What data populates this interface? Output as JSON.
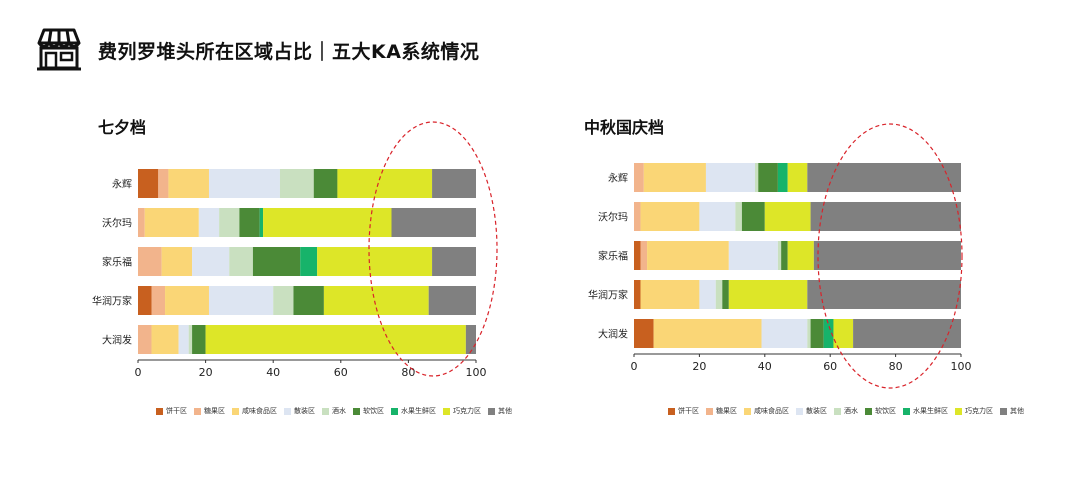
{
  "header": {
    "title": "费列罗堆头所在区域占比｜五大KA系统情况",
    "icon": "store-icon"
  },
  "chart_data": [
    {
      "type": "bar",
      "orientation": "horizontal",
      "stacked": true,
      "title": "七夕档",
      "categories": [
        "永辉",
        "沃尔玛",
        "家乐福",
        "华润万家",
        "大润发"
      ],
      "xlim": [
        0,
        100
      ],
      "xticks": [
        "0",
        "20",
        "40",
        "60",
        "80",
        "100"
      ],
      "legend_position": "bottom",
      "highlight": "dashed-ellipse",
      "series": [
        {
          "name": "饼干区",
          "color": "#c8601f",
          "values": [
            6,
            0,
            0,
            4,
            0
          ]
        },
        {
          "name": "糖果区",
          "color": "#f2b48c",
          "values": [
            3,
            2,
            7,
            4,
            4
          ]
        },
        {
          "name": "咸味食品区",
          "color": "#fad676",
          "values": [
            12,
            16,
            9,
            13,
            8
          ]
        },
        {
          "name": "散装区",
          "color": "#dde5f2",
          "values": [
            21,
            6,
            11,
            19,
            3
          ]
        },
        {
          "name": "酒水",
          "color": "#c9e0c0",
          "values": [
            10,
            6,
            7,
            6,
            1
          ]
        },
        {
          "name": "软饮区",
          "color": "#4b8a37",
          "values": [
            7,
            6,
            14,
            9,
            4
          ]
        },
        {
          "name": "水果生鲜区",
          "color": "#17b36a",
          "values": [
            0,
            1,
            5,
            0,
            0
          ]
        },
        {
          "name": "巧克力区",
          "color": "#dde628",
          "values": [
            28,
            38,
            34,
            31,
            77
          ]
        },
        {
          "name": "其他",
          "color": "#808080",
          "values": [
            13,
            25,
            13,
            14,
            3
          ]
        }
      ]
    },
    {
      "type": "bar",
      "orientation": "horizontal",
      "stacked": true,
      "title": "中秋国庆档",
      "categories": [
        "永辉",
        "沃尔玛",
        "家乐福",
        "华润万家",
        "大润发"
      ],
      "xlim": [
        0,
        100
      ],
      "xticks": [
        "0",
        "20",
        "40",
        "60",
        "80",
        "100"
      ],
      "legend_position": "bottom",
      "highlight": "dashed-ellipse",
      "series": [
        {
          "name": "饼干区",
          "color": "#c8601f",
          "values": [
            0,
            0,
            2,
            2,
            6
          ]
        },
        {
          "name": "糖果区",
          "color": "#f2b48c",
          "values": [
            3,
            2,
            2,
            0,
            0
          ]
        },
        {
          "name": "咸味食品区",
          "color": "#fad676",
          "values": [
            19,
            18,
            25,
            18,
            33
          ]
        },
        {
          "name": "散装区",
          "color": "#dde5f2",
          "values": [
            15,
            11,
            15,
            5,
            14
          ]
        },
        {
          "name": "酒水",
          "color": "#c9e0c0",
          "values": [
            1,
            2,
            1,
            2,
            1
          ]
        },
        {
          "name": "软饮区",
          "color": "#4b8a37",
          "values": [
            6,
            7,
            2,
            2,
            4
          ]
        },
        {
          "name": "水果生鲜区",
          "color": "#17b36a",
          "values": [
            3,
            0,
            0,
            0,
            3
          ]
        },
        {
          "name": "巧克力区",
          "color": "#dde628",
          "values": [
            6,
            14,
            8,
            24,
            6
          ]
        },
        {
          "name": "其他",
          "color": "#808080",
          "values": [
            47,
            46,
            45,
            47,
            33
          ]
        }
      ]
    }
  ]
}
